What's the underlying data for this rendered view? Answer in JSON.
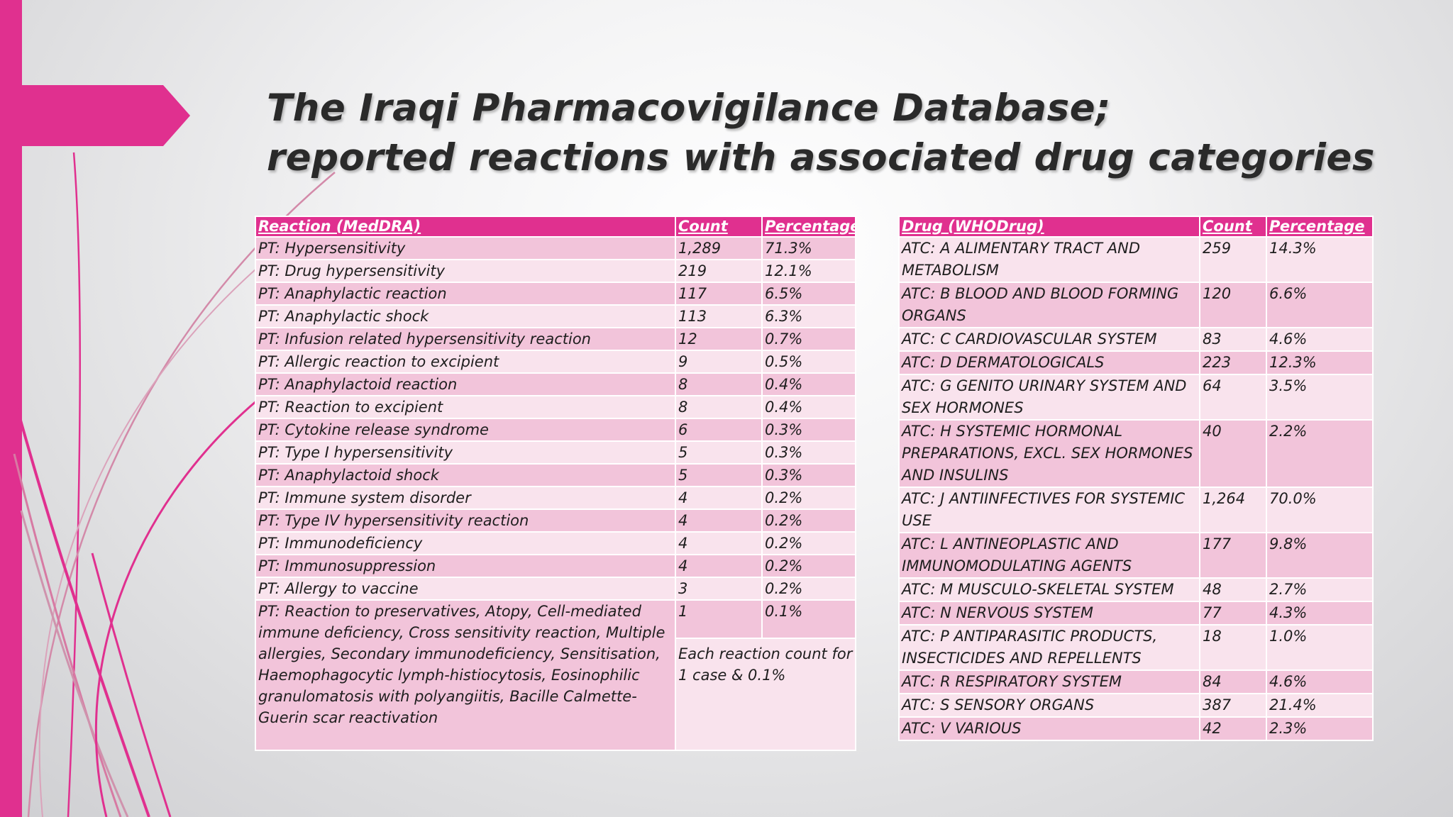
{
  "colors": {
    "accent": "#e0308f",
    "row_dark": "#f2c4da",
    "row_light": "#f9e3ed",
    "title": "#2a2a2a"
  },
  "title": {
    "line1": "The Iraqi Pharmacovigilance Database;",
    "line2": "reported reactions with associated drug categories"
  },
  "reactions_table": {
    "headers": [
      "Reaction (MedDRA)",
      "Count",
      "Percentage"
    ],
    "rows": [
      {
        "reaction": "PT: Hypersensitivity",
        "count": "1,289",
        "percentage": "71.3%"
      },
      {
        "reaction": "PT: Drug hypersensitivity",
        "count": "219",
        "percentage": "12.1%"
      },
      {
        "reaction": "PT: Anaphylactic reaction",
        "count": "117",
        "percentage": "6.5%"
      },
      {
        "reaction": "PT: Anaphylactic shock",
        "count": "113",
        "percentage": "6.3%"
      },
      {
        "reaction": "PT: Infusion related hypersensitivity reaction",
        "count": "12",
        "percentage": "0.7%"
      },
      {
        "reaction": "PT: Allergic reaction to excipient",
        "count": "9",
        "percentage": "0.5%"
      },
      {
        "reaction": "PT: Anaphylactoid reaction",
        "count": "8",
        "percentage": "0.4%"
      },
      {
        "reaction": "PT: Reaction to excipient",
        "count": "8",
        "percentage": "0.4%"
      },
      {
        "reaction": "PT: Cytokine release syndrome",
        "count": "6",
        "percentage": "0.3%"
      },
      {
        "reaction": "PT: Type I hypersensitivity",
        "count": "5",
        "percentage": "0.3%"
      },
      {
        "reaction": "PT: Anaphylactoid shock",
        "count": "5",
        "percentage": "0.3%"
      },
      {
        "reaction": "PT: Immune system disorder",
        "count": "4",
        "percentage": "0.2%"
      },
      {
        "reaction": "PT: Type IV hypersensitivity reaction",
        "count": "4",
        "percentage": "0.2%"
      },
      {
        "reaction": "PT: Immunodeficiency",
        "count": "4",
        "percentage": "0.2%"
      },
      {
        "reaction": "PT: Immunosuppression",
        "count": "4",
        "percentage": "0.2%"
      },
      {
        "reaction": "PT: Allergy to vaccine",
        "count": "3",
        "percentage": "0.2%"
      }
    ],
    "last_row": {
      "reaction": "PT: Reaction to preservatives, Atopy, Cell-mediated immune deficiency, Cross sensitivity reaction, Multiple allergies, Secondary immunodeficiency, Sensitisation, Haemophagocytic lymph-histiocytosis, Eosinophilic granulomatosis with polyangiitis, Bacille Calmette-Guerin scar reactivation",
      "count": "1",
      "percentage": "0.1%",
      "note": "Each reaction count for 1 case & 0.1%"
    }
  },
  "drugs_table": {
    "headers": [
      "Drug (WHODrug)",
      "Count",
      "Percentage"
    ],
    "rows": [
      {
        "drug": "ATC: A ALIMENTARY TRACT AND METABOLISM",
        "count": "259",
        "percentage": "14.3%"
      },
      {
        "drug": "ATC: B BLOOD AND BLOOD FORMING ORGANS",
        "count": "120",
        "percentage": "6.6%"
      },
      {
        "drug": "ATC: C CARDIOVASCULAR SYSTEM",
        "count": "83",
        "percentage": "4.6%"
      },
      {
        "drug": "ATC: D DERMATOLOGICALS",
        "count": "223",
        "percentage": "12.3%"
      },
      {
        "drug": "ATC: G GENITO URINARY SYSTEM AND SEX HORMONES",
        "count": "64",
        "percentage": "3.5%"
      },
      {
        "drug": "ATC: H SYSTEMIC HORMONAL PREPARATIONS, EXCL. SEX HORMONES AND INSULINS",
        "count": "40",
        "percentage": "2.2%"
      },
      {
        "drug": "ATC: J ANTIINFECTIVES FOR SYSTEMIC USE",
        "count": "1,264",
        "percentage": "70.0%"
      },
      {
        "drug": "ATC: L ANTINEOPLASTIC AND IMMUNOMODULATING AGENTS",
        "count": "177",
        "percentage": "9.8%"
      },
      {
        "drug": "ATC: M MUSCULO-SKELETAL SYSTEM",
        "count": "48",
        "percentage": "2.7%"
      },
      {
        "drug": "ATC: N NERVOUS SYSTEM",
        "count": "77",
        "percentage": "4.3%"
      },
      {
        "drug": "ATC: P ANTIPARASITIC PRODUCTS, INSECTICIDES AND REPELLENTS",
        "count": "18",
        "percentage": "1.0%"
      },
      {
        "drug": "ATC: R RESPIRATORY SYSTEM",
        "count": "84",
        "percentage": "4.6%"
      },
      {
        "drug": "ATC: S SENSORY ORGANS",
        "count": "387",
        "percentage": "21.4%"
      },
      {
        "drug": "ATC: V VARIOUS",
        "count": "42",
        "percentage": "2.3%"
      }
    ]
  }
}
